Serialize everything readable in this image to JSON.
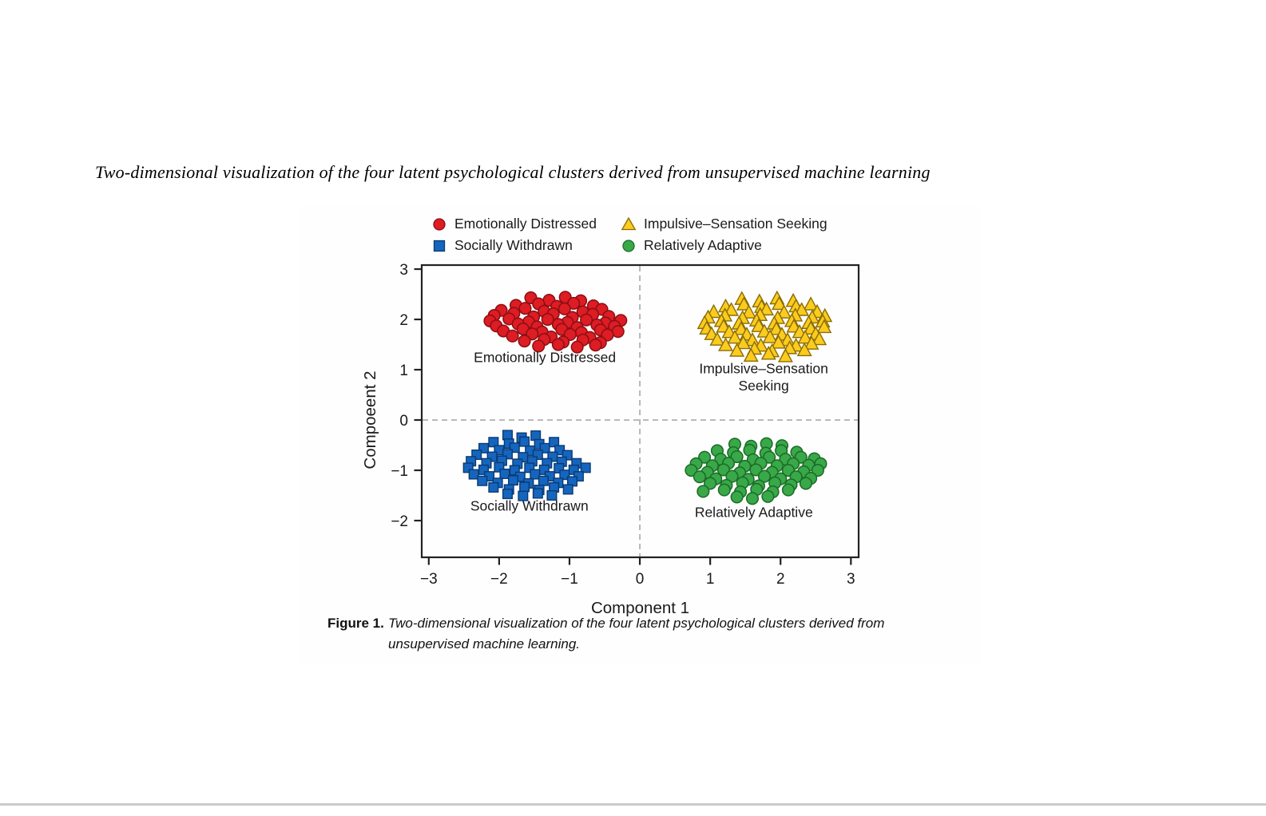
{
  "page": {
    "title": "Two-dimensional visualization of the four latent psychological clusters derived from unsupervised machine learning"
  },
  "caption": {
    "label": "Figure 1.",
    "text": "Two-dimensional visualization of the four latent psychological clusters derived from unsupervised machine learning."
  },
  "chart_data": {
    "type": "scatter",
    "title": "",
    "xlabel": "Component 1",
    "ylabel": "Compoeent 2",
    "xlim": [
      -3.1,
      3.11
    ],
    "ylim": [
      -2.73,
      3.08
    ],
    "grid": false,
    "zero_lines": true,
    "legend_position": "top",
    "xticks": {
      "values": [
        -3,
        -2,
        -1,
        0,
        1,
        2,
        3
      ],
      "labels": [
        "−3",
        "−2",
        "−1",
        "0",
        "1",
        "2",
        "3"
      ]
    },
    "yticks": {
      "values": [
        3,
        2,
        1,
        0,
        -1,
        -2
      ],
      "labels": [
        "3",
        "2",
        "1",
        "0",
        "−1",
        "−2"
      ]
    },
    "colors": {
      "axis": "#222222",
      "dashed_line": "#9b9b9b",
      "text": "#1a1a1a"
    },
    "legend": [
      {
        "label": "Emotionally Distressed",
        "marker": "circle",
        "fill": "#DD1C23",
        "stroke": "#8A0F14"
      },
      {
        "label": "Impulsive–Sensation Seeking",
        "marker": "triangle",
        "fill": "#FBCB1E",
        "stroke": "#8A6D04"
      },
      {
        "label": "Socially Withdrawn",
        "marker": "square",
        "fill": "#1565BE",
        "stroke": "#0A3A72"
      },
      {
        "label": "Relatively Adaptive",
        "marker": "circle",
        "fill": "#38A848",
        "stroke": "#1C6B27"
      }
    ],
    "clusters": [
      {
        "name": "Emotionally Distressed",
        "marker": "circle",
        "fill": "#DD1C23",
        "stroke": "#8A0F14",
        "label_lines": [
          "Emotionally Distressed"
        ],
        "label_at": [
          -1.35,
          1.15
        ],
        "points": [
          [
            -1.55,
            2.43
          ],
          [
            -1.29,
            2.38
          ],
          [
            -1.06,
            2.44
          ],
          [
            -0.84,
            2.37
          ],
          [
            -1.76,
            2.28
          ],
          [
            -1.44,
            2.31
          ],
          [
            -1.18,
            2.26
          ],
          [
            -0.94,
            2.32
          ],
          [
            -0.66,
            2.27
          ],
          [
            -1.97,
            2.18
          ],
          [
            -1.63,
            2.22
          ],
          [
            -1.36,
            2.16
          ],
          [
            -1.07,
            2.21
          ],
          [
            -0.81,
            2.15
          ],
          [
            -0.54,
            2.2
          ],
          [
            -2.07,
            2.08
          ],
          [
            -1.79,
            2.12
          ],
          [
            -1.51,
            2.05
          ],
          [
            -1.23,
            2.11
          ],
          [
            -0.96,
            2.04
          ],
          [
            -0.67,
            2.1
          ],
          [
            -0.44,
            2.06
          ],
          [
            -2.13,
            1.97
          ],
          [
            -1.86,
            2.01
          ],
          [
            -1.58,
            1.95
          ],
          [
            -1.31,
            2.0
          ],
          [
            -1.03,
            1.94
          ],
          [
            -0.76,
            1.99
          ],
          [
            -0.49,
            1.93
          ],
          [
            -0.27,
            1.98
          ],
          [
            -2.04,
            1.87
          ],
          [
            -1.73,
            1.91
          ],
          [
            -1.46,
            1.85
          ],
          [
            -1.16,
            1.9
          ],
          [
            -0.89,
            1.84
          ],
          [
            -0.61,
            1.89
          ],
          [
            -0.36,
            1.86
          ],
          [
            -1.94,
            1.77
          ],
          [
            -1.66,
            1.81
          ],
          [
            -1.39,
            1.75
          ],
          [
            -1.11,
            1.8
          ],
          [
            -0.83,
            1.74
          ],
          [
            -0.56,
            1.79
          ],
          [
            -0.31,
            1.76
          ],
          [
            -1.81,
            1.67
          ],
          [
            -1.53,
            1.71
          ],
          [
            -1.26,
            1.65
          ],
          [
            -0.99,
            1.7
          ],
          [
            -0.71,
            1.64
          ],
          [
            -0.46,
            1.69
          ],
          [
            -1.64,
            1.57
          ],
          [
            -1.36,
            1.6
          ],
          [
            -1.09,
            1.55
          ],
          [
            -0.81,
            1.59
          ],
          [
            -0.56,
            1.54
          ],
          [
            -1.44,
            1.47
          ],
          [
            -1.16,
            1.5
          ],
          [
            -0.89,
            1.45
          ],
          [
            -0.63,
            1.49
          ]
        ]
      },
      {
        "name": "Impulsive–Sensation Seeking",
        "marker": "triangle",
        "fill": "#FBCB1E",
        "stroke": "#8A6D04",
        "label_lines": [
          "Impulsive–Sensation",
          "Seeking"
        ],
        "label_at": [
          1.76,
          0.93
        ],
        "points": [
          [
            1.45,
            2.4
          ],
          [
            1.7,
            2.35
          ],
          [
            1.95,
            2.41
          ],
          [
            2.18,
            2.36
          ],
          [
            1.22,
            2.25
          ],
          [
            1.48,
            2.29
          ],
          [
            1.73,
            2.24
          ],
          [
            1.98,
            2.3
          ],
          [
            2.22,
            2.25
          ],
          [
            2.43,
            2.29
          ],
          [
            1.05,
            2.14
          ],
          [
            1.3,
            2.18
          ],
          [
            1.55,
            2.13
          ],
          [
            1.8,
            2.19
          ],
          [
            2.05,
            2.13
          ],
          [
            2.3,
            2.18
          ],
          [
            2.52,
            2.14
          ],
          [
            0.97,
            2.03
          ],
          [
            1.21,
            2.07
          ],
          [
            1.46,
            2.02
          ],
          [
            1.71,
            2.08
          ],
          [
            1.96,
            2.02
          ],
          [
            2.21,
            2.07
          ],
          [
            2.45,
            2.03
          ],
          [
            2.63,
            2.06
          ],
          [
            0.92,
            1.92
          ],
          [
            1.16,
            1.96
          ],
          [
            1.41,
            1.91
          ],
          [
            1.66,
            1.97
          ],
          [
            1.91,
            1.91
          ],
          [
            2.16,
            1.96
          ],
          [
            2.4,
            1.92
          ],
          [
            2.6,
            1.95
          ],
          [
            0.95,
            1.81
          ],
          [
            1.19,
            1.85
          ],
          [
            1.44,
            1.8
          ],
          [
            1.69,
            1.86
          ],
          [
            1.94,
            1.8
          ],
          [
            2.19,
            1.85
          ],
          [
            2.43,
            1.81
          ],
          [
            2.62,
            1.84
          ],
          [
            1.02,
            1.7
          ],
          [
            1.27,
            1.74
          ],
          [
            1.52,
            1.69
          ],
          [
            1.77,
            1.75
          ],
          [
            2.02,
            1.69
          ],
          [
            2.27,
            1.74
          ],
          [
            2.5,
            1.7
          ],
          [
            1.1,
            1.59
          ],
          [
            1.35,
            1.63
          ],
          [
            1.6,
            1.58
          ],
          [
            1.85,
            1.64
          ],
          [
            2.1,
            1.58
          ],
          [
            2.35,
            1.63
          ],
          [
            2.55,
            1.6
          ],
          [
            1.22,
            1.48
          ],
          [
            1.47,
            1.52
          ],
          [
            1.72,
            1.47
          ],
          [
            1.97,
            1.53
          ],
          [
            2.22,
            1.47
          ],
          [
            2.44,
            1.51
          ],
          [
            1.38,
            1.37
          ],
          [
            1.63,
            1.41
          ],
          [
            1.88,
            1.36
          ],
          [
            2.13,
            1.42
          ],
          [
            2.34,
            1.38
          ],
          [
            1.58,
            1.27
          ],
          [
            1.83,
            1.31
          ],
          [
            2.07,
            1.26
          ]
        ]
      },
      {
        "name": "Socially Withdrawn",
        "marker": "square",
        "fill": "#1565BE",
        "stroke": "#0A3A72",
        "label_lines": [
          "Socially Withdrawn"
        ],
        "label_at": [
          -1.57,
          -1.8
        ],
        "points": [
          [
            -1.88,
            -0.3
          ],
          [
            -1.68,
            -0.35
          ],
          [
            -1.48,
            -0.31
          ],
          [
            -2.08,
            -0.44
          ],
          [
            -1.86,
            -0.47
          ],
          [
            -1.64,
            -0.43
          ],
          [
            -1.43,
            -0.48
          ],
          [
            -1.22,
            -0.44
          ],
          [
            -2.22,
            -0.56
          ],
          [
            -2.0,
            -0.6
          ],
          [
            -1.78,
            -0.55
          ],
          [
            -1.56,
            -0.61
          ],
          [
            -1.35,
            -0.56
          ],
          [
            -1.14,
            -0.6
          ],
          [
            -2.32,
            -0.69
          ],
          [
            -2.1,
            -0.73
          ],
          [
            -1.88,
            -0.68
          ],
          [
            -1.66,
            -0.74
          ],
          [
            -1.45,
            -0.69
          ],
          [
            -1.24,
            -0.73
          ],
          [
            -1.03,
            -0.7
          ],
          [
            -2.4,
            -0.82
          ],
          [
            -2.18,
            -0.86
          ],
          [
            -1.96,
            -0.81
          ],
          [
            -1.74,
            -0.87
          ],
          [
            -1.53,
            -0.82
          ],
          [
            -1.32,
            -0.86
          ],
          [
            -1.11,
            -0.83
          ],
          [
            -0.9,
            -0.86
          ],
          [
            -2.44,
            -0.95
          ],
          [
            -2.22,
            -0.99
          ],
          [
            -2.0,
            -0.94
          ],
          [
            -1.78,
            -1.0
          ],
          [
            -1.57,
            -0.95
          ],
          [
            -1.36,
            -0.99
          ],
          [
            -1.15,
            -0.96
          ],
          [
            -0.94,
            -0.99
          ],
          [
            -0.77,
            -0.95
          ],
          [
            -2.36,
            -1.08
          ],
          [
            -2.14,
            -1.12
          ],
          [
            -1.92,
            -1.07
          ],
          [
            -1.7,
            -1.13
          ],
          [
            -1.49,
            -1.08
          ],
          [
            -1.28,
            -1.12
          ],
          [
            -1.07,
            -1.09
          ],
          [
            -0.87,
            -1.12
          ],
          [
            -2.24,
            -1.21
          ],
          [
            -2.02,
            -1.25
          ],
          [
            -1.8,
            -1.2
          ],
          [
            -1.58,
            -1.26
          ],
          [
            -1.37,
            -1.21
          ],
          [
            -1.16,
            -1.25
          ],
          [
            -0.96,
            -1.22
          ],
          [
            -2.08,
            -1.34
          ],
          [
            -1.86,
            -1.38
          ],
          [
            -1.64,
            -1.33
          ],
          [
            -1.43,
            -1.39
          ],
          [
            -1.22,
            -1.34
          ],
          [
            -1.02,
            -1.38
          ],
          [
            -1.88,
            -1.47
          ],
          [
            -1.66,
            -1.51
          ],
          [
            -1.45,
            -1.46
          ],
          [
            -1.25,
            -1.5
          ]
        ]
      },
      {
        "name": "Relatively Adaptive",
        "marker": "circle",
        "fill": "#38A848",
        "stroke": "#1C6B27",
        "label_lines": [
          "Relatively Adaptive"
        ],
        "label_at": [
          1.62,
          -1.93
        ],
        "points": [
          [
            1.35,
            -0.48
          ],
          [
            1.58,
            -0.52
          ],
          [
            1.8,
            -0.47
          ],
          [
            2.02,
            -0.51
          ],
          [
            1.1,
            -0.61
          ],
          [
            1.33,
            -0.65
          ],
          [
            1.56,
            -0.6
          ],
          [
            1.79,
            -0.66
          ],
          [
            2.01,
            -0.61
          ],
          [
            2.23,
            -0.64
          ],
          [
            0.92,
            -0.74
          ],
          [
            1.15,
            -0.78
          ],
          [
            1.38,
            -0.73
          ],
          [
            1.61,
            -0.79
          ],
          [
            1.84,
            -0.74
          ],
          [
            2.07,
            -0.78
          ],
          [
            2.29,
            -0.74
          ],
          [
            2.48,
            -0.77
          ],
          [
            0.8,
            -0.87
          ],
          [
            1.03,
            -0.91
          ],
          [
            1.26,
            -0.86
          ],
          [
            1.49,
            -0.92
          ],
          [
            1.72,
            -0.86
          ],
          [
            1.95,
            -0.91
          ],
          [
            2.18,
            -0.87
          ],
          [
            2.4,
            -0.9
          ],
          [
            2.57,
            -0.87
          ],
          [
            0.73,
            -1.0
          ],
          [
            0.96,
            -1.04
          ],
          [
            1.19,
            -0.99
          ],
          [
            1.42,
            -1.05
          ],
          [
            1.65,
            -0.99
          ],
          [
            1.88,
            -1.04
          ],
          [
            2.11,
            -1.0
          ],
          [
            2.33,
            -1.03
          ],
          [
            2.53,
            -1.0
          ],
          [
            0.85,
            -1.13
          ],
          [
            1.08,
            -1.17
          ],
          [
            1.31,
            -1.12
          ],
          [
            1.54,
            -1.18
          ],
          [
            1.77,
            -1.12
          ],
          [
            2.0,
            -1.17
          ],
          [
            2.22,
            -1.13
          ],
          [
            2.43,
            -1.16
          ],
          [
            1.0,
            -1.26
          ],
          [
            1.23,
            -1.3
          ],
          [
            1.46,
            -1.25
          ],
          [
            1.69,
            -1.31
          ],
          [
            1.92,
            -1.25
          ],
          [
            2.15,
            -1.29
          ],
          [
            2.36,
            -1.26
          ],
          [
            1.2,
            -1.39
          ],
          [
            1.43,
            -1.43
          ],
          [
            1.66,
            -1.38
          ],
          [
            1.89,
            -1.43
          ],
          [
            2.11,
            -1.39
          ],
          [
            0.9,
            -1.42
          ],
          [
            1.38,
            -1.53
          ],
          [
            1.6,
            -1.56
          ],
          [
            1.82,
            -1.52
          ]
        ]
      }
    ]
  }
}
